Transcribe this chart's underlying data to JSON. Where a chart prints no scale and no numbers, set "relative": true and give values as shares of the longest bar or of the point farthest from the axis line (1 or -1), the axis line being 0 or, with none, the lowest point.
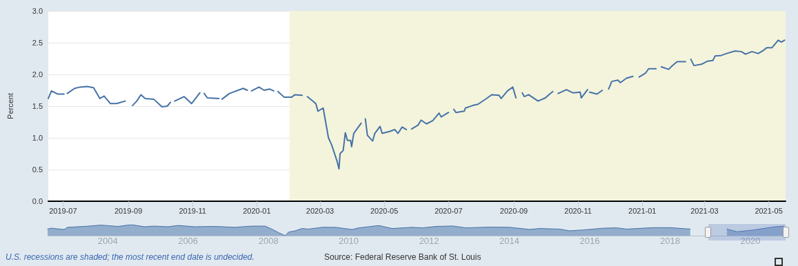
{
  "chart_data": [
    {
      "type": "line",
      "ylabel": "Percent",
      "annotations": [
        "U.S. recessions are shaded; the most recent end date is undecided.",
        "Source: Federal Reserve Bank of St. Louis"
      ],
      "x": [
        "2019-06-17",
        "2019-06-20",
        "2019-06-26",
        "2019-07-02",
        "2019-07-04",
        "2019-07-05",
        "2019-07-12",
        "2019-07-17",
        "2019-07-24",
        "2019-07-30",
        "2019-08-05",
        "2019-08-09",
        "2019-08-15",
        "2019-08-21",
        "2019-08-29",
        "2019-09-02",
        "2019-09-05",
        "2019-09-09",
        "2019-09-13",
        "2019-09-17",
        "2019-09-25",
        "2019-10-03",
        "2019-10-08",
        "2019-10-11",
        "2019-10-14",
        "2019-10-15",
        "2019-10-24",
        "2019-10-31",
        "2019-11-08",
        "2019-11-11",
        "2019-11-12",
        "2019-11-15",
        "2019-11-26",
        "2019-11-28",
        "2019-11-29",
        "2019-12-06",
        "2019-12-19",
        "2019-12-23",
        "2019-12-25",
        "2019-12-27",
        "2020-01-03",
        "2020-01-08",
        "2020-01-13",
        "2020-01-17",
        "2020-01-20",
        "2020-01-21",
        "2020-01-27",
        "2020-02-03",
        "2020-02-06",
        "2020-02-13",
        "2020-02-17",
        "2020-02-18",
        "2020-02-26",
        "2020-02-28",
        "2020-03-04",
        "2020-03-09",
        "2020-03-12",
        "2020-03-17",
        "2020-03-19",
        "2020-03-20",
        "2020-03-23",
        "2020-03-25",
        "2020-03-27",
        "2020-03-30",
        "2020-03-31",
        "2020-04-02",
        "2020-04-09",
        "2020-04-10",
        "2020-04-13",
        "2020-04-15",
        "2020-04-20",
        "2020-04-22",
        "2020-04-27",
        "2020-04-29",
        "2020-05-06",
        "2020-05-11",
        "2020-05-14",
        "2020-05-18",
        "2020-05-22",
        "2020-05-25",
        "2020-05-27",
        "2020-06-02",
        "2020-06-05",
        "2020-06-10",
        "2020-06-16",
        "2020-06-22",
        "2020-06-24",
        "2020-07-01",
        "2020-07-03",
        "2020-07-06",
        "2020-07-08",
        "2020-07-16",
        "2020-07-17",
        "2020-07-24",
        "2020-07-29",
        "2020-08-06",
        "2020-08-11",
        "2020-08-18",
        "2020-08-20",
        "2020-08-26",
        "2020-08-31",
        "2020-09-03",
        "2020-09-07",
        "2020-09-09",
        "2020-09-11",
        "2020-09-15",
        "2020-09-24",
        "2020-10-01",
        "2020-10-05",
        "2020-10-08",
        "2020-10-12",
        "2020-10-13",
        "2020-10-21",
        "2020-10-27",
        "2020-11-03",
        "2020-11-04",
        "2020-11-10",
        "2020-11-11",
        "2020-11-12",
        "2020-11-19",
        "2020-11-24",
        "2020-11-26",
        "2020-11-30",
        "2020-12-03",
        "2020-12-09",
        "2020-12-11",
        "2020-12-17",
        "2020-12-23",
        "2020-12-25",
        "2020-12-29",
        "2020-12-31",
        "2021-01-04",
        "2021-01-07",
        "2021-01-14",
        "2021-01-18",
        "2021-01-19",
        "2021-01-26",
        "2021-01-29",
        "2021-02-03",
        "2021-02-11",
        "2021-02-15",
        "2021-02-16",
        "2021-02-19",
        "2021-02-26",
        "2021-03-04",
        "2021-03-09",
        "2021-03-11",
        "2021-03-17",
        "2021-03-22",
        "2021-03-30",
        "2021-04-05",
        "2021-04-09",
        "2021-04-15",
        "2021-04-21",
        "2021-04-26",
        "2021-04-29",
        "2021-05-04",
        "2021-05-10",
        "2021-05-13",
        "2021-05-16"
      ],
      "series": [
        {
          "color": "#4572a7",
          "values": [
            1.62,
            1.74,
            1.69,
            1.69,
            null,
            1.7,
            1.78,
            1.8,
            1.81,
            1.79,
            1.62,
            1.66,
            1.54,
            1.54,
            1.58,
            null,
            1.51,
            1.58,
            1.68,
            1.62,
            1.61,
            1.49,
            1.5,
            1.56,
            null,
            1.58,
            1.65,
            1.54,
            1.71,
            null,
            1.7,
            1.63,
            1.62,
            null,
            1.61,
            1.7,
            1.78,
            1.75,
            null,
            1.74,
            1.8,
            1.75,
            1.77,
            1.74,
            null,
            1.73,
            1.64,
            1.64,
            1.68,
            1.67,
            null,
            1.65,
            1.54,
            1.42,
            1.47,
            1.0,
            0.89,
            0.64,
            0.51,
            0.75,
            0.8,
            1.08,
            0.96,
            0.96,
            0.86,
            1.07,
            1.23,
            null,
            1.3,
            1.04,
            0.95,
            1.07,
            1.18,
            1.07,
            1.1,
            1.13,
            1.07,
            1.17,
            1.13,
            null,
            1.14,
            1.2,
            1.28,
            1.22,
            1.27,
            1.39,
            1.33,
            1.4,
            null,
            1.45,
            1.4,
            1.42,
            1.47,
            1.51,
            1.53,
            1.62,
            1.68,
            1.67,
            1.62,
            1.74,
            1.8,
            1.63,
            null,
            1.71,
            1.65,
            1.68,
            1.58,
            1.63,
            1.69,
            1.73,
            null,
            1.7,
            1.76,
            1.71,
            1.72,
            1.63,
            1.76,
            null,
            1.72,
            1.69,
            1.75,
            null,
            1.77,
            1.89,
            1.91,
            1.87,
            1.94,
            1.97,
            null,
            1.96,
            1.98,
            2.02,
            2.09,
            2.09,
            null,
            2.12,
            2.08,
            2.13,
            2.2,
            2.2,
            null,
            2.24,
            2.14,
            2.16,
            2.21,
            2.22,
            2.29,
            2.3,
            2.33,
            2.37,
            2.36,
            2.32,
            2.36,
            2.33,
            2.38,
            2.42,
            2.42,
            2.54,
            2.51,
            2.54
          ]
        }
      ],
      "xlim": [
        "2019-06-17",
        "2021-05-17"
      ],
      "xticks": [
        "2019-07",
        "2019-09",
        "2019-11",
        "2020-01",
        "2020-03",
        "2020-05",
        "2020-07",
        "2020-09",
        "2020-11",
        "2021-01",
        "2021-03",
        "2021-05"
      ],
      "ylim": [
        0,
        3
      ],
      "yticks": [
        {
          "value": 0,
          "label": "0.0"
        },
        {
          "value": 0.5,
          "label": "0.5"
        },
        {
          "value": 1,
          "label": "1.0"
        },
        {
          "value": 1.5,
          "label": "1.5"
        },
        {
          "value": 2,
          "label": "2.0"
        },
        {
          "value": 2.5,
          "label": "2.5"
        },
        {
          "value": 3,
          "label": "3.0"
        }
      ],
      "bands": [
        {
          "axis": "x",
          "from": "2020-02",
          "to": "2021-05-17",
          "color": "#f4f4dc"
        }
      ],
      "grid": "y",
      "marker": "none",
      "line_style": "solid"
    },
    {
      "type": "area",
      "relative": true,
      "tick_labels": "x",
      "marker": "none",
      "x": [
        "2003-01",
        "2003-02",
        "2003-06",
        "2003-07",
        "2003-12",
        "2004-05",
        "2004-10",
        "2005-02",
        "2005-06",
        "2005-09",
        "2006-01",
        "2006-04",
        "2006-09",
        "2007-03",
        "2007-09",
        "2008-02",
        "2008-06",
        "2008-08",
        "2008-10",
        "2008-12",
        "2009-01",
        "2009-03",
        "2009-05",
        "2009-07",
        "2009-11",
        "2010-03",
        "2010-08",
        "2010-10",
        "2011-04",
        "2011-08",
        "2012-02",
        "2012-05",
        "2012-09",
        "2013-02",
        "2013-06",
        "2014-01",
        "2014-07",
        "2015-01",
        "2015-04",
        "2015-10",
        "2016-01",
        "2016-05",
        "2016-11",
        "2017-03",
        "2017-06",
        "2018-02",
        "2018-07",
        "2019-01",
        "2019-06",
        "2019-12",
        "2020-03",
        "2020-08",
        "2021-02",
        "2021-05"
      ],
      "series": [
        {
          "color": "#4572a7",
          "values": [
            0.6,
            0.68,
            0.56,
            0.76,
            0.84,
            0.96,
            0.84,
            1.0,
            0.81,
            0.87,
            0.81,
            0.93,
            0.81,
            0.84,
            0.76,
            0.87,
            0.87,
            0.6,
            0.28,
            0,
            0.33,
            0.44,
            0.65,
            0.6,
            0.76,
            0.76,
            0.56,
            0.71,
            0.92,
            0.65,
            0.76,
            0.71,
            0.84,
            0.88,
            0.71,
            0.78,
            0.76,
            0.57,
            0.65,
            0.6,
            0.44,
            0.52,
            0.68,
            0.71,
            0.6,
            0.73,
            0.73,
            0.6,
            null,
            0.6,
            0.36,
            0.52,
            0.8,
            0.87
          ]
        }
      ],
      "xlim": [
        "2003-01",
        "2021-05-17"
      ],
      "xticks": [
        {
          "value": "2004-07",
          "label": "2004"
        },
        {
          "value": "2006-07",
          "label": "2006"
        },
        {
          "value": "2008-07",
          "label": "2008"
        },
        {
          "value": "2010-07",
          "label": "2010"
        },
        {
          "value": "2012-07",
          "label": "2012"
        },
        {
          "value": "2014-07",
          "label": "2014"
        },
        {
          "value": "2016-07",
          "label": "2016"
        },
        {
          "value": "2018-07",
          "label": "2018"
        },
        {
          "value": "2020-07",
          "label": "2020"
        }
      ]
    }
  ]
}
